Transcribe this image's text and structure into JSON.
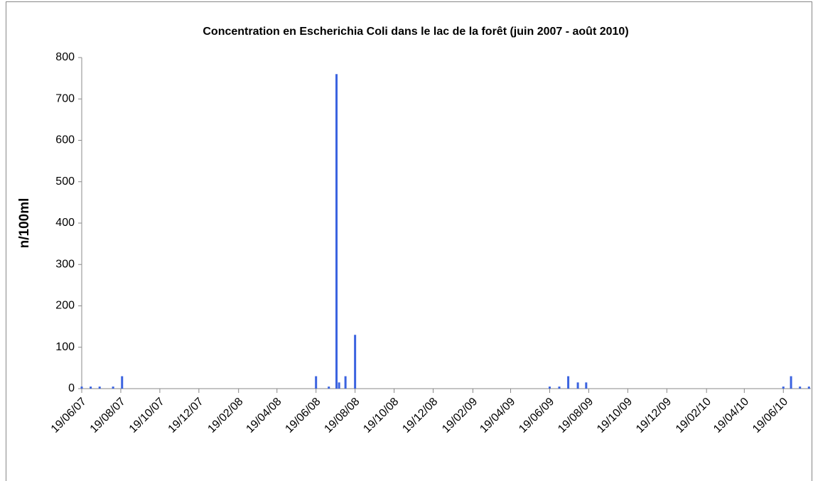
{
  "chart_data": {
    "type": "bar",
    "title": "Concentration en Escherichia Coli dans le lac de la forêt (juin 2007 - août 2010)",
    "y_label": "n/100ml",
    "color": "#3b63e0",
    "x": [
      "2007-06-19",
      "2007-07-03",
      "2007-07-17",
      "2007-08-07",
      "2007-08-21",
      "2008-06-19",
      "2008-07-09",
      "2008-07-21",
      "2008-07-25",
      "2008-08-04",
      "2008-08-19",
      "2009-06-19",
      "2009-07-04",
      "2009-07-18",
      "2009-08-02",
      "2009-08-15",
      "2010-06-19",
      "2010-07-01",
      "2010-07-15",
      "2010-07-29"
    ],
    "values": [
      5,
      5,
      5,
      5,
      30,
      30,
      5,
      760,
      15,
      30,
      130,
      5,
      5,
      30,
      15,
      15,
      5,
      30,
      5,
      5
    ],
    "xlim": [
      "2007-06-19",
      "2010-08-01"
    ],
    "xticks": [
      {
        "value": "2007-06-19",
        "label": "19/06/07"
      },
      {
        "value": "2007-08-19",
        "label": "19/08/07"
      },
      {
        "value": "2007-10-19",
        "label": "19/10/07"
      },
      {
        "value": "2007-12-19",
        "label": "19/12/07"
      },
      {
        "value": "2008-02-19",
        "label": "19/02/08"
      },
      {
        "value": "2008-04-19",
        "label": "19/04/08"
      },
      {
        "value": "2008-06-19",
        "label": "19/06/08"
      },
      {
        "value": "2008-08-19",
        "label": "19/08/08"
      },
      {
        "value": "2008-10-19",
        "label": "19/10/08"
      },
      {
        "value": "2008-12-19",
        "label": "19/12/08"
      },
      {
        "value": "2009-02-19",
        "label": "19/02/09"
      },
      {
        "value": "2009-04-19",
        "label": "19/04/09"
      },
      {
        "value": "2009-06-19",
        "label": "19/06/09"
      },
      {
        "value": "2009-08-19",
        "label": "19/08/09"
      },
      {
        "value": "2009-10-19",
        "label": "19/10/09"
      },
      {
        "value": "2009-12-19",
        "label": "19/12/09"
      },
      {
        "value": "2010-02-19",
        "label": "19/02/10"
      },
      {
        "value": "2010-04-19",
        "label": "19/04/10"
      },
      {
        "value": "2010-06-19",
        "label": "19/06/10"
      }
    ],
    "ylim": [
      0,
      800
    ],
    "yticks": [
      0,
      100,
      200,
      300,
      400,
      500,
      600,
      700,
      800
    ],
    "grid": false
  }
}
